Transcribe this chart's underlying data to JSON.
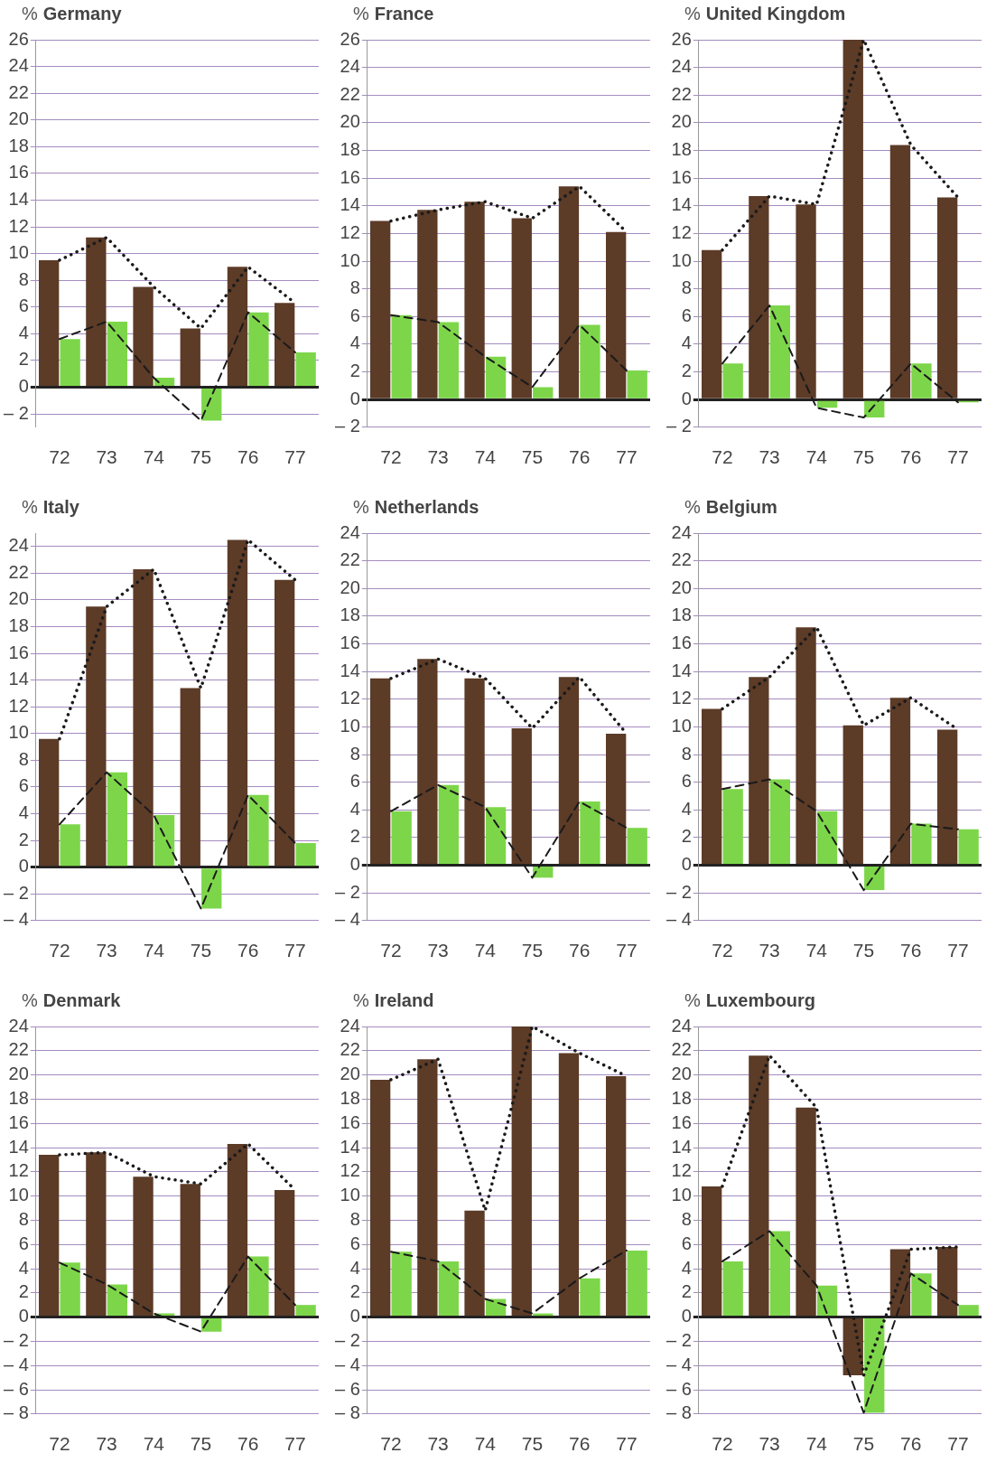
{
  "chart_data": [
    {
      "type": "bar",
      "title": "Germany",
      "ylabel": "%",
      "categories": [
        "72",
        "73",
        "74",
        "75",
        "76",
        "77"
      ],
      "ylim": [
        -3,
        26
      ],
      "yticks": [
        {
          "value": -2,
          "label": "– 2"
        },
        0,
        2,
        4,
        6,
        8,
        10,
        12,
        14,
        16,
        18,
        20,
        22,
        24,
        26
      ],
      "grid": "y",
      "series": [
        {
          "color": "#5c3b27",
          "values": [
            9.5,
            11.2,
            7.5,
            4.4,
            9.0,
            6.3
          ]
        },
        {
          "color": "#7dd64a",
          "values": [
            3.6,
            4.9,
            0.7,
            -2.5,
            5.6,
            2.6
          ]
        },
        {
          "type": "line",
          "color": "#1a1a1a",
          "line_style": "dotted",
          "marker": "none",
          "values": [
            9.5,
            11.2,
            7.5,
            4.4,
            9.0,
            6.3
          ]
        },
        {
          "type": "line",
          "color": "#1a1a1a",
          "line_style": "dashed",
          "marker": "none",
          "values": [
            3.6,
            4.9,
            0.7,
            -2.5,
            5.6,
            2.6
          ]
        }
      ]
    },
    {
      "type": "bar",
      "title": "France",
      "ylabel": "%",
      "categories": [
        "72",
        "73",
        "74",
        "75",
        "76",
        "77"
      ],
      "ylim": [
        -2,
        26
      ],
      "yticks": [
        {
          "value": -2,
          "label": "– 2"
        },
        0,
        2,
        4,
        6,
        8,
        10,
        12,
        14,
        16,
        18,
        20,
        22,
        24,
        26
      ],
      "grid": "y",
      "series": [
        {
          "color": "#5c3b27",
          "values": [
            12.9,
            13.7,
            14.3,
            13.1,
            15.4,
            12.1
          ]
        },
        {
          "color": "#7dd64a",
          "values": [
            6.1,
            5.6,
            3.1,
            0.9,
            5.4,
            2.1
          ]
        },
        {
          "type": "line",
          "color": "#1a1a1a",
          "line_style": "dotted",
          "marker": "none",
          "values": [
            12.9,
            13.7,
            14.3,
            13.1,
            15.4,
            12.1
          ]
        },
        {
          "type": "line",
          "color": "#1a1a1a",
          "line_style": "dashed",
          "marker": "none",
          "values": [
            6.1,
            5.6,
            3.1,
            0.9,
            5.4,
            2.1
          ]
        }
      ]
    },
    {
      "type": "bar",
      "title": "United Kingdom",
      "ylabel": "%",
      "categories": [
        "72",
        "73",
        "74",
        "75",
        "76",
        "77"
      ],
      "ylim": [
        -2,
        26
      ],
      "yticks": [
        {
          "value": -2,
          "label": "– 2"
        },
        0,
        2,
        4,
        6,
        8,
        10,
        12,
        14,
        16,
        18,
        20,
        22,
        24,
        26
      ],
      "grid": "y",
      "series": [
        {
          "color": "#5c3b27",
          "values": [
            10.8,
            14.7,
            14.1,
            26.0,
            18.4,
            14.6
          ]
        },
        {
          "color": "#7dd64a",
          "values": [
            2.6,
            6.8,
            -0.6,
            -1.3,
            2.6,
            -0.2
          ]
        },
        {
          "type": "line",
          "color": "#1a1a1a",
          "line_style": "dotted",
          "marker": "none",
          "values": [
            10.8,
            14.7,
            14.1,
            26.0,
            18.4,
            14.6
          ]
        },
        {
          "type": "line",
          "color": "#1a1a1a",
          "line_style": "dashed",
          "marker": "none",
          "values": [
            2.6,
            6.8,
            -0.6,
            -1.3,
            2.6,
            -0.2
          ]
        }
      ]
    },
    {
      "type": "bar",
      "title": "Italy",
      "ylabel": "%",
      "categories": [
        "72",
        "73",
        "74",
        "75",
        "76",
        "77"
      ],
      "ylim": [
        -4,
        25
      ],
      "yticks": [
        {
          "value": -4,
          "label": "– 4"
        },
        {
          "value": -2,
          "label": "– 2"
        },
        0,
        2,
        4,
        6,
        8,
        10,
        12,
        14,
        16,
        18,
        20,
        22,
        24
      ],
      "grid": "y",
      "series": [
        {
          "color": "#5c3b27",
          "values": [
            9.6,
            19.5,
            22.3,
            13.4,
            24.5,
            21.5
          ]
        },
        {
          "color": "#7dd64a",
          "values": [
            3.2,
            7.1,
            3.9,
            -3.1,
            5.4,
            1.8
          ]
        },
        {
          "type": "line",
          "color": "#1a1a1a",
          "line_style": "dotted",
          "marker": "none",
          "values": [
            9.6,
            19.5,
            22.3,
            13.4,
            24.5,
            21.5
          ]
        },
        {
          "type": "line",
          "color": "#1a1a1a",
          "line_style": "dashed",
          "marker": "none",
          "values": [
            3.2,
            7.1,
            3.9,
            -3.1,
            5.4,
            1.8
          ]
        }
      ]
    },
    {
      "type": "bar",
      "title": "Netherlands",
      "ylabel": "%",
      "categories": [
        "72",
        "73",
        "74",
        "75",
        "76",
        "77"
      ],
      "ylim": [
        -4,
        24
      ],
      "yticks": [
        {
          "value": -4,
          "label": "– 4"
        },
        {
          "value": -2,
          "label": "– 2"
        },
        0,
        2,
        4,
        6,
        8,
        10,
        12,
        14,
        16,
        18,
        20,
        22,
        24
      ],
      "grid": "y",
      "series": [
        {
          "color": "#5c3b27",
          "values": [
            13.5,
            14.9,
            13.5,
            9.9,
            13.6,
            9.5
          ]
        },
        {
          "color": "#7dd64a",
          "values": [
            3.9,
            5.8,
            4.2,
            -0.9,
            4.6,
            2.7
          ]
        },
        {
          "type": "line",
          "color": "#1a1a1a",
          "line_style": "dotted",
          "marker": "none",
          "values": [
            13.5,
            14.9,
            13.5,
            9.9,
            13.6,
            9.5
          ]
        },
        {
          "type": "line",
          "color": "#1a1a1a",
          "line_style": "dashed",
          "marker": "none",
          "values": [
            3.9,
            5.8,
            4.2,
            -0.9,
            4.6,
            2.7
          ]
        }
      ]
    },
    {
      "type": "bar",
      "title": "Belgium",
      "ylabel": "%",
      "categories": [
        "72",
        "73",
        "74",
        "75",
        "76",
        "77"
      ],
      "ylim": [
        -4,
        24
      ],
      "yticks": [
        {
          "value": -4,
          "label": "– 4"
        },
        {
          "value": -2,
          "label": "– 2"
        },
        0,
        2,
        4,
        6,
        8,
        10,
        12,
        14,
        16,
        18,
        20,
        22,
        24
      ],
      "grid": "y",
      "series": [
        {
          "color": "#5c3b27",
          "values": [
            11.3,
            13.6,
            17.2,
            10.1,
            12.1,
            9.8
          ]
        },
        {
          "color": "#7dd64a",
          "values": [
            5.5,
            6.2,
            3.9,
            -1.8,
            3.0,
            2.6
          ]
        },
        {
          "type": "line",
          "color": "#1a1a1a",
          "line_style": "dotted",
          "marker": "none",
          "values": [
            11.3,
            13.6,
            17.2,
            10.1,
            12.1,
            9.8
          ]
        },
        {
          "type": "line",
          "color": "#1a1a1a",
          "line_style": "dashed",
          "marker": "none",
          "values": [
            5.5,
            6.2,
            3.9,
            -1.8,
            3.0,
            2.6
          ]
        }
      ]
    },
    {
      "type": "bar",
      "title": "Denmark",
      "ylabel": "%",
      "categories": [
        "72",
        "73",
        "74",
        "75",
        "76",
        "77"
      ],
      "ylim": [
        -8,
        24
      ],
      "yticks": [
        {
          "value": -8,
          "label": "– 8"
        },
        {
          "value": -6,
          "label": "– 6"
        },
        {
          "value": -4,
          "label": "– 4"
        },
        {
          "value": -2,
          "label": "– 2"
        },
        0,
        2,
        4,
        6,
        8,
        10,
        12,
        14,
        16,
        18,
        20,
        22,
        24
      ],
      "grid": "y",
      "series": [
        {
          "color": "#5c3b27",
          "values": [
            13.4,
            13.6,
            11.6,
            11.0,
            14.3,
            10.5
          ]
        },
        {
          "color": "#7dd64a",
          "values": [
            4.5,
            2.7,
            0.3,
            -1.2,
            5.0,
            1.0
          ]
        },
        {
          "type": "line",
          "color": "#1a1a1a",
          "line_style": "dotted",
          "marker": "none",
          "values": [
            13.4,
            13.6,
            11.6,
            11.0,
            14.3,
            10.5
          ]
        },
        {
          "type": "line",
          "color": "#1a1a1a",
          "line_style": "dashed",
          "marker": "none",
          "values": [
            4.5,
            2.7,
            0.3,
            -1.2,
            5.0,
            1.0
          ]
        }
      ]
    },
    {
      "type": "bar",
      "title": "Ireland",
      "ylabel": "%",
      "categories": [
        "72",
        "73",
        "74",
        "75",
        "76",
        "77"
      ],
      "ylim": [
        -8,
        24
      ],
      "yticks": [
        {
          "value": -8,
          "label": "– 8"
        },
        {
          "value": -6,
          "label": "– 6"
        },
        {
          "value": -4,
          "label": "– 4"
        },
        {
          "value": -2,
          "label": "– 2"
        },
        0,
        2,
        4,
        6,
        8,
        10,
        12,
        14,
        16,
        18,
        20,
        22,
        24
      ],
      "grid": "y",
      "series": [
        {
          "color": "#5c3b27",
          "values": [
            19.6,
            21.3,
            8.8,
            24.0,
            21.8,
            19.9
          ]
        },
        {
          "color": "#7dd64a",
          "values": [
            5.4,
            4.6,
            1.5,
            0.3,
            3.2,
            5.5
          ]
        },
        {
          "type": "line",
          "color": "#1a1a1a",
          "line_style": "dotted",
          "marker": "none",
          "values": [
            19.6,
            21.3,
            8.8,
            24.0,
            21.8,
            19.9
          ]
        },
        {
          "type": "line",
          "color": "#1a1a1a",
          "line_style": "dashed",
          "marker": "none",
          "values": [
            5.4,
            4.6,
            1.5,
            0.3,
            3.2,
            5.5
          ]
        }
      ]
    },
    {
      "type": "bar",
      "title": "Luxembourg",
      "ylabel": "%",
      "categories": [
        "72",
        "73",
        "74",
        "75",
        "76",
        "77"
      ],
      "ylim": [
        -8,
        24
      ],
      "yticks": [
        {
          "value": -8,
          "label": "– 8"
        },
        {
          "value": -6,
          "label": "– 6"
        },
        {
          "value": -4,
          "label": "– 4"
        },
        {
          "value": -2,
          "label": "– 2"
        },
        0,
        2,
        4,
        6,
        8,
        10,
        12,
        14,
        16,
        18,
        20,
        22,
        24
      ],
      "grid": "y",
      "series": [
        {
          "color": "#5c3b27",
          "values": [
            10.8,
            21.6,
            17.3,
            -4.8,
            5.6,
            5.8
          ]
        },
        {
          "color": "#7dd64a",
          "values": [
            4.6,
            7.1,
            2.6,
            -7.9,
            3.6,
            1.0
          ]
        },
        {
          "type": "line",
          "color": "#1a1a1a",
          "line_style": "dotted",
          "marker": "none",
          "values": [
            10.8,
            21.6,
            17.3,
            -4.8,
            5.6,
            5.8
          ]
        },
        {
          "type": "line",
          "color": "#1a1a1a",
          "line_style": "dashed",
          "marker": "none",
          "values": [
            4.6,
            7.1,
            2.6,
            -7.9,
            3.6,
            1.0
          ]
        }
      ]
    }
  ]
}
